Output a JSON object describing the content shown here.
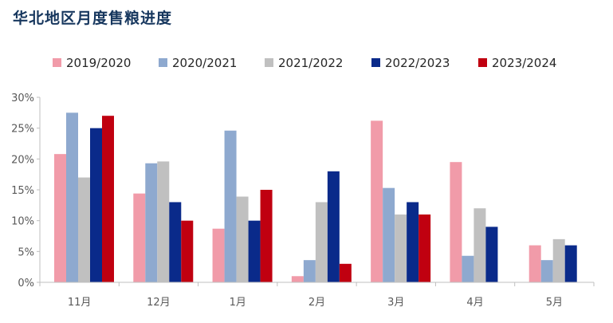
{
  "chart_data": {
    "type": "bar",
    "title": "华北地区月度售粮进度",
    "categories": [
      "11月",
      "12月",
      "1月",
      "2月",
      "3月",
      "4月",
      "5月"
    ],
    "ylim": [
      0,
      30
    ],
    "yticks": [
      "0%",
      "5%",
      "10%",
      "15%",
      "20%",
      "25%",
      "30%"
    ],
    "legend_position": "top",
    "grid": false,
    "series": [
      {
        "name": "2019/2020",
        "color": "#f19ba9",
        "values": [
          20.8,
          14.4,
          8.7,
          1.0,
          26.2,
          19.5,
          6.0
        ]
      },
      {
        "name": "2020/2021",
        "color": "#8ea9cf",
        "values": [
          27.5,
          19.3,
          24.6,
          3.6,
          15.3,
          4.3,
          3.6
        ]
      },
      {
        "name": "2021/2022",
        "color": "#c0c0c0",
        "values": [
          17.0,
          19.6,
          13.9,
          13.0,
          11.0,
          12.0,
          7.0
        ]
      },
      {
        "name": "2022/2023",
        "color": "#0a2a8a",
        "values": [
          25.0,
          13.0,
          10.0,
          18.0,
          13.0,
          9.0,
          6.0
        ]
      },
      {
        "name": "2023/2024",
        "color": "#c00010",
        "values": [
          27.0,
          10.0,
          15.0,
          3.0,
          11.0,
          null,
          null
        ]
      }
    ]
  }
}
